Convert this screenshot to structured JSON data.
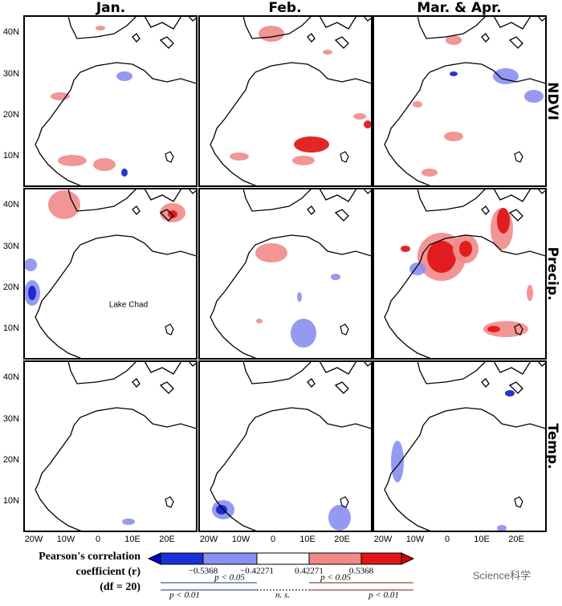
{
  "columns": [
    "Jan.",
    "Feb.",
    "Mar. & Apr."
  ],
  "rows": [
    "NDVI",
    "Precip.",
    "Temp."
  ],
  "latitude_labels": [
    "40N",
    "30N",
    "20N",
    "10N"
  ],
  "longitude_labels": [
    "20W",
    "10W",
    "0",
    "10E",
    "20E"
  ],
  "annotation": "Lake Chad",
  "colorbar": {
    "title": [
      "Pearson's correlation",
      "coefficient (r)",
      "(df = 20)"
    ],
    "tick_labels": [
      "−0.5368",
      "−0.42271",
      "0.42271",
      "0.5368"
    ],
    "significance": {
      "upper": [
        "p < 0.05",
        "p < 0.05"
      ],
      "lower": [
        "p < 0.01",
        "n. s.",
        "p < 0.01"
      ]
    }
  },
  "watermark": "Science科学"
}
